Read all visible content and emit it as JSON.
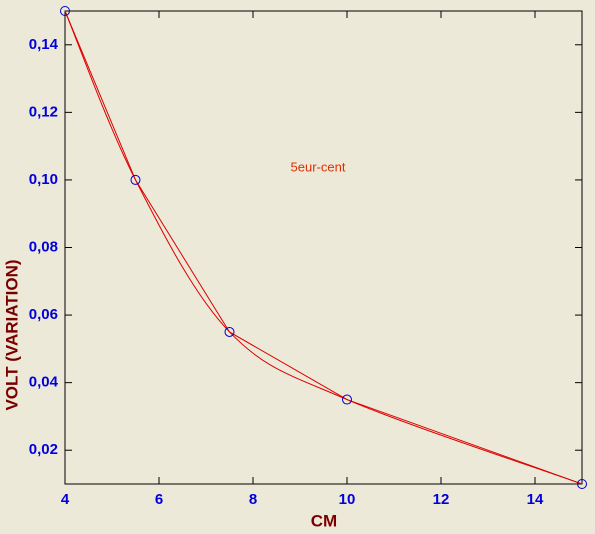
{
  "chart_data": {
    "type": "scatter",
    "x_label": "CM",
    "y_label": "VOLT (VARIATION)",
    "annotation": "5eur-cent",
    "x": [
      4,
      5.5,
      7.5,
      10,
      15
    ],
    "values": [
      0.15,
      0.1,
      0.055,
      0.035,
      0.01
    ],
    "line_color": "#dd0000",
    "marker_color": "#0000cc",
    "line": true,
    "spline": true,
    "xlim": [
      4,
      15
    ],
    "xticks": [
      4,
      6,
      8,
      10,
      12,
      14
    ],
    "ylim": [
      0.01,
      0.15
    ],
    "yticks": [
      {
        "value": 0.02,
        "label": "0,02"
      },
      {
        "value": 0.04,
        "label": "0,04"
      },
      {
        "value": 0.06,
        "label": "0,06"
      },
      {
        "value": 0.08,
        "label": "0,08"
      },
      {
        "value": 0.1,
        "label": "0,10"
      },
      {
        "value": 0.12,
        "label": "0,12"
      },
      {
        "value": 0.14,
        "label": "0,14"
      }
    ]
  }
}
